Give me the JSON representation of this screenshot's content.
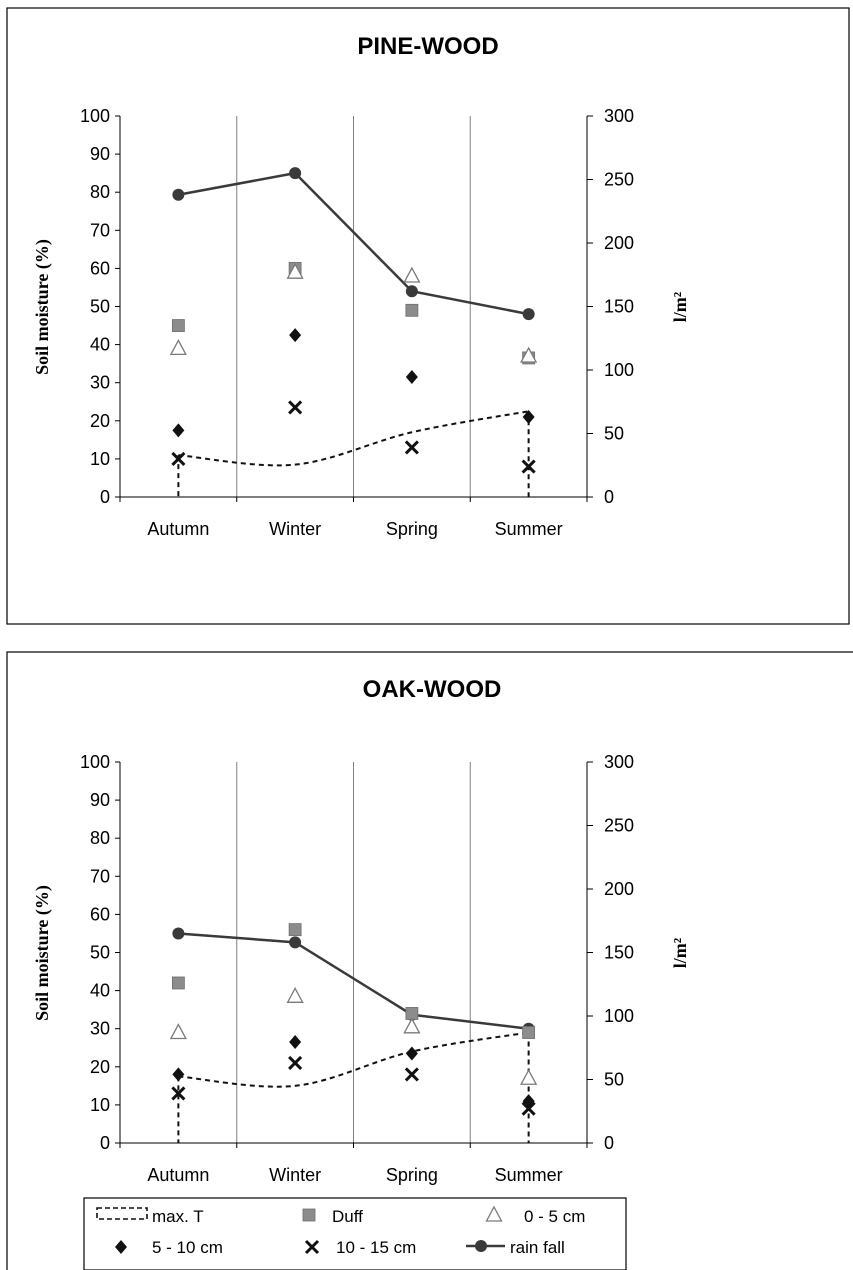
{
  "chart_data": [
    {
      "type": "line",
      "title": "PINE-WOOD",
      "categories": [
        "Autumn",
        "Winter",
        "Spring",
        "Summer"
      ],
      "ylabel": "Soil moisture (%)",
      "y2label": "l/m²",
      "ylim": [
        0,
        100
      ],
      "y2lim": [
        0,
        300
      ],
      "yticks": [
        "0",
        "10",
        "20",
        "30",
        "40",
        "50",
        "60",
        "70",
        "80",
        "90",
        "100"
      ],
      "y2ticks": [
        "0",
        "50",
        "100",
        "150",
        "200",
        "250",
        "300"
      ],
      "series": [
        {
          "name": "max. T",
          "axis": "left",
          "values": [
            11,
            8.5,
            17,
            22.5
          ]
        },
        {
          "name": "Duff",
          "axis": "left",
          "values": [
            45,
            60,
            49,
            36.5
          ]
        },
        {
          "name": "0 - 5 cm",
          "axis": "left",
          "values": [
            39,
            59,
            58,
            37
          ]
        },
        {
          "name": "5 - 10 cm",
          "axis": "left",
          "values": [
            17.5,
            42.5,
            31.5,
            21
          ]
        },
        {
          "name": "10 - 15 cm",
          "axis": "left",
          "values": [
            10,
            23.5,
            13,
            8
          ]
        },
        {
          "name": "rain  fall",
          "axis": "right",
          "values": [
            238,
            255,
            162,
            144
          ]
        }
      ]
    },
    {
      "type": "line",
      "title": "OAK-WOOD",
      "categories": [
        "Autumn",
        "Winter",
        "Spring",
        "Summer"
      ],
      "ylabel": "Soil moisture (%)",
      "y2label": "l/m²",
      "ylim": [
        0,
        100
      ],
      "y2lim": [
        0,
        300
      ],
      "yticks": [
        "0",
        "10",
        "20",
        "30",
        "40",
        "50",
        "60",
        "70",
        "80",
        "90",
        "100"
      ],
      "y2ticks": [
        "0",
        "50",
        "100",
        "150",
        "200",
        "250",
        "300"
      ],
      "series": [
        {
          "name": "max. T",
          "axis": "left",
          "values": [
            17.5,
            15,
            24,
            29
          ]
        },
        {
          "name": "Duff",
          "axis": "left",
          "values": [
            42,
            56,
            34,
            29
          ]
        },
        {
          "name": "0 - 5 cm",
          "axis": "left",
          "values": [
            29,
            38.5,
            30.5,
            17
          ]
        },
        {
          "name": "5 - 10 cm",
          "axis": "left",
          "values": [
            18,
            26.5,
            23.5,
            11
          ]
        },
        {
          "name": "10 - 15 cm",
          "axis": "left",
          "values": [
            13,
            21,
            18,
            9
          ]
        },
        {
          "name": "rain  fall",
          "axis": "right",
          "values": [
            165,
            158,
            101,
            90
          ]
        }
      ]
    }
  ],
  "legend": {
    "max_t": "max. T",
    "duff": "Duff",
    "cm_0_5": "0 - 5 cm",
    "cm_5_10": "5 - 10 cm",
    "cm_10_15": "10 - 15 cm",
    "rain": "rain  fall"
  },
  "colors": {
    "rain": "#3a3a3a",
    "duff": "#8c8c8c",
    "triangle_fill": "#ffffff",
    "triangle_stroke": "#7a7a7a",
    "diamond": "#111111",
    "cross": "#111111",
    "maxT": "#111111",
    "grid": "#808080"
  }
}
